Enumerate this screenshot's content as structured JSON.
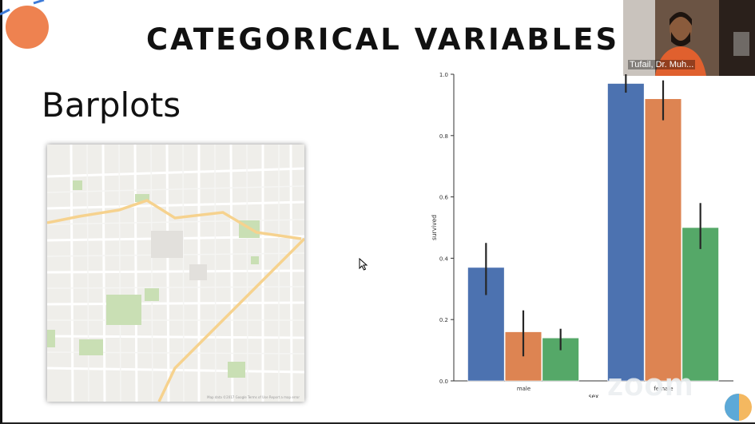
{
  "slide": {
    "title": "CATEGORICAL VARIABLES",
    "subtitle": "Barplots"
  },
  "webcam": {
    "participant_name": "Tufail, Dr. Muh..."
  },
  "watermark": {
    "text": "zoom"
  },
  "map": {
    "attribution": "Map data ©2017 Google   Terms of Use   Report a map error"
  },
  "colors": {
    "accent_orange": "#ee8250",
    "series_1": "#4c72b0",
    "series_2": "#dd8452",
    "series_3": "#55a868"
  },
  "chart_data": {
    "type": "bar",
    "xlabel": "sex",
    "ylabel": "survived",
    "categories": [
      "male",
      "female"
    ],
    "ylim": [
      0,
      1.0
    ],
    "yticks": [
      "0.0",
      "0.2",
      "0.4",
      "0.6",
      "0.8",
      "1.0"
    ],
    "series": [
      {
        "values": [
          0.37,
          0.97
        ],
        "ci": [
          [
            0.28,
            0.45
          ],
          [
            0.94,
            1.0
          ]
        ],
        "color": "#4c72b0"
      },
      {
        "values": [
          0.16,
          0.92
        ],
        "ci": [
          [
            0.08,
            0.23
          ],
          [
            0.85,
            0.98
          ]
        ],
        "color": "#dd8452"
      },
      {
        "values": [
          0.14,
          0.5
        ],
        "ci": [
          [
            0.1,
            0.17
          ],
          [
            0.43,
            0.58
          ]
        ],
        "color": "#55a868"
      }
    ],
    "grid": false,
    "legend": "none"
  }
}
